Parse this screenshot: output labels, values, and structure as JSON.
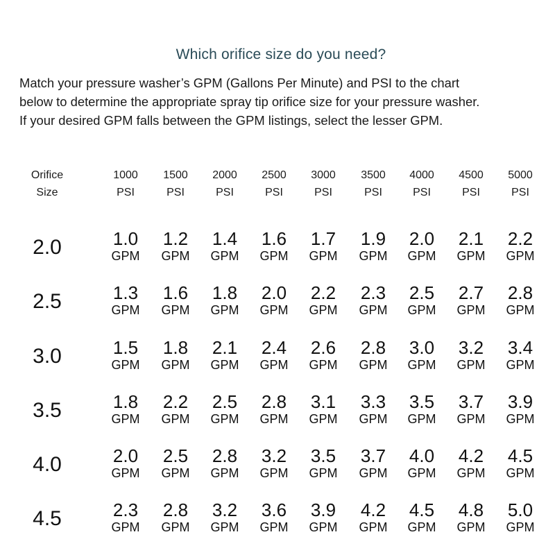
{
  "title": "Which orifice size do you need?",
  "intro": [
    "Match your pressure washer’s GPM (Gallons Per Minute) and PSI to the chart",
    "below to determine the appropriate spray tip orifice size for your pressure washer.",
    "If your desired GPM falls between the GPM listings, select the lesser GPM."
  ],
  "table": {
    "size_header": [
      "Orifice",
      "Size"
    ],
    "psi_headers": [
      [
        "1000",
        "PSI"
      ],
      [
        "1500",
        "PSI"
      ],
      [
        "2000",
        "PSI"
      ],
      [
        "2500",
        "PSI"
      ],
      [
        "3000",
        "PSI"
      ],
      [
        "3500",
        "PSI"
      ],
      [
        "4000",
        "PSI"
      ],
      [
        "4500",
        "PSI"
      ],
      [
        "5000",
        "PSI"
      ]
    ],
    "unit": "GPM",
    "rows": [
      {
        "size": "2.0",
        "values": [
          "1.0",
          "1.2",
          "1.4",
          "1.6",
          "1.7",
          "1.9",
          "2.0",
          "2.1",
          "2.2"
        ]
      },
      {
        "size": "2.5",
        "values": [
          "1.3",
          "1.6",
          "1.8",
          "2.0",
          "2.2",
          "2.3",
          "2.5",
          "2.7",
          "2.8"
        ]
      },
      {
        "size": "3.0",
        "values": [
          "1.5",
          "1.8",
          "2.1",
          "2.4",
          "2.6",
          "2.8",
          "3.0",
          "3.2",
          "3.4"
        ]
      },
      {
        "size": "3.5",
        "values": [
          "1.8",
          "2.2",
          "2.5",
          "2.8",
          "3.1",
          "3.3",
          "3.5",
          "3.7",
          "3.9"
        ]
      },
      {
        "size": "4.0",
        "values": [
          "2.0",
          "2.5",
          "2.8",
          "3.2",
          "3.5",
          "3.7",
          "4.0",
          "4.2",
          "4.5"
        ]
      },
      {
        "size": "4.5",
        "values": [
          "2.3",
          "2.8",
          "3.2",
          "3.6",
          "3.9",
          "4.2",
          "4.5",
          "4.8",
          "5.0"
        ]
      }
    ]
  }
}
